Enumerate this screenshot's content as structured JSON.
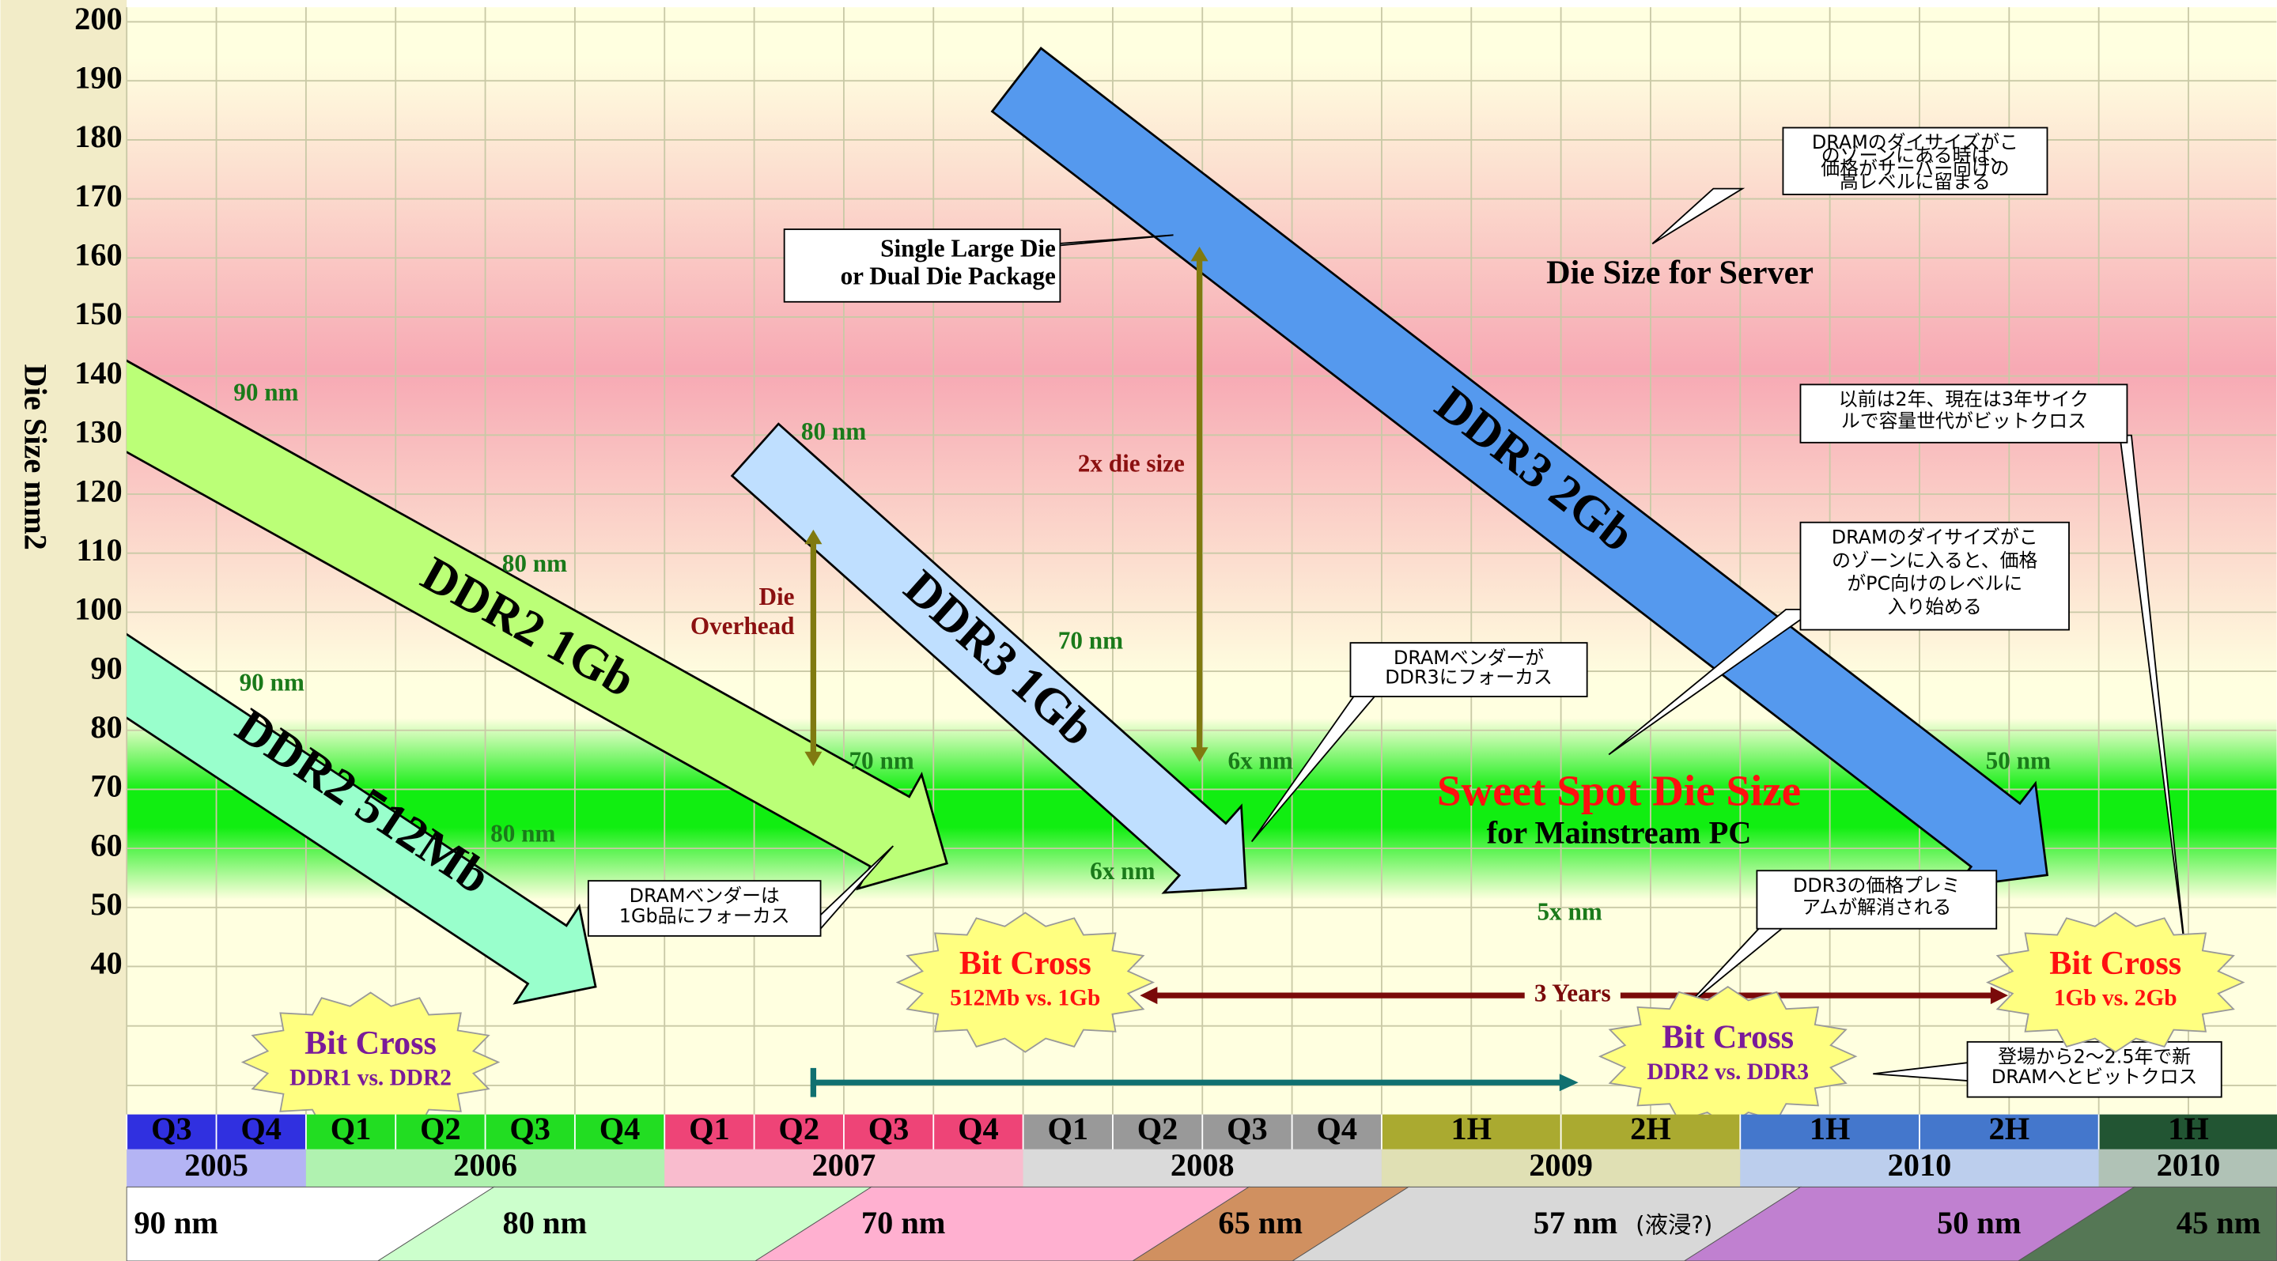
{
  "axis": {
    "label": "Die Size mm2",
    "ticks": [
      200,
      190,
      180,
      170,
      160,
      150,
      140,
      130,
      120,
      110,
      100,
      90,
      80,
      70,
      60,
      50,
      40
    ]
  },
  "zones": {
    "server": "Die Size for Server",
    "sweet_spot": "Sweet Spot Die Size",
    "sweet_spot_sub": "for Mainstream PC"
  },
  "products": [
    "DDR2 512Mb",
    "DDR2 1Gb",
    "DDR3 1Gb",
    "DDR3 2Gb"
  ],
  "process_labels": [
    "90 nm",
    "80 nm",
    "90 nm",
    "80 nm",
    "80 nm",
    "70 nm",
    "70 nm",
    "6x nm",
    "6x nm",
    "5x nm",
    "50 nm"
  ],
  "annotations": {
    "large_die": [
      "Single Large Die",
      "or Dual Die Package"
    ],
    "double": "2x die size",
    "overhead": [
      "Die",
      "Overhead"
    ],
    "years": "3 Years"
  },
  "bit_cross": [
    {
      "title": "Bit Cross",
      "sub": "DDR1 vs. DDR2"
    },
    {
      "title": "Bit Cross",
      "sub": "512Mb vs. 1Gb"
    },
    {
      "title": "Bit Cross",
      "sub": "DDR2 vs. DDR3"
    },
    {
      "title": "Bit Cross",
      "sub": "1Gb vs. 2Gb"
    }
  ],
  "callouts": [
    {
      "lines": [
        "DRAMのダイサイズがこ",
        "のゾーンにある時は、",
        "価格がサーバー向けの",
        "高レベルに留まる"
      ]
    },
    {
      "lines": [
        "以前は2年、現在は3年サイク",
        "ルで容量世代がビットクロス"
      ]
    },
    {
      "lines": [
        "DRAMのダイサイズがこ",
        "のゾーンに入ると、価格",
        "がPC向けのレベルに",
        "入り始める"
      ]
    },
    {
      "lines": [
        "DRAMベンダーが",
        "DDR3にフォーカス"
      ]
    },
    {
      "lines": [
        "DRAMベンダーは",
        "1Gb品にフォーカス"
      ]
    },
    {
      "lines": [
        "DDR3の価格プレミ",
        "アムが解消される"
      ]
    },
    {
      "lines": [
        "登場から2～2.5年で新",
        "DRAMへとビットクロス"
      ]
    }
  ],
  "timeline": {
    "periods": [
      "Q3",
      "Q4",
      "Q1",
      "Q2",
      "Q3",
      "Q4",
      "Q1",
      "Q2",
      "Q3",
      "Q4",
      "Q1",
      "Q2",
      "Q3",
      "Q4",
      "1H",
      "2H",
      "1H",
      "2H",
      "1H"
    ],
    "years": [
      "2005",
      "2006",
      "2007",
      "2008",
      "2009",
      "2010",
      "2010"
    ],
    "nodes": [
      {
        "label": "90 nm"
      },
      {
        "label": "80 nm"
      },
      {
        "label": "70 nm"
      },
      {
        "label": "65 nm"
      },
      {
        "label": "57 nm",
        "note": "(液浸?)"
      },
      {
        "label": "50 nm"
      },
      {
        "label": "45 nm"
      }
    ]
  }
}
